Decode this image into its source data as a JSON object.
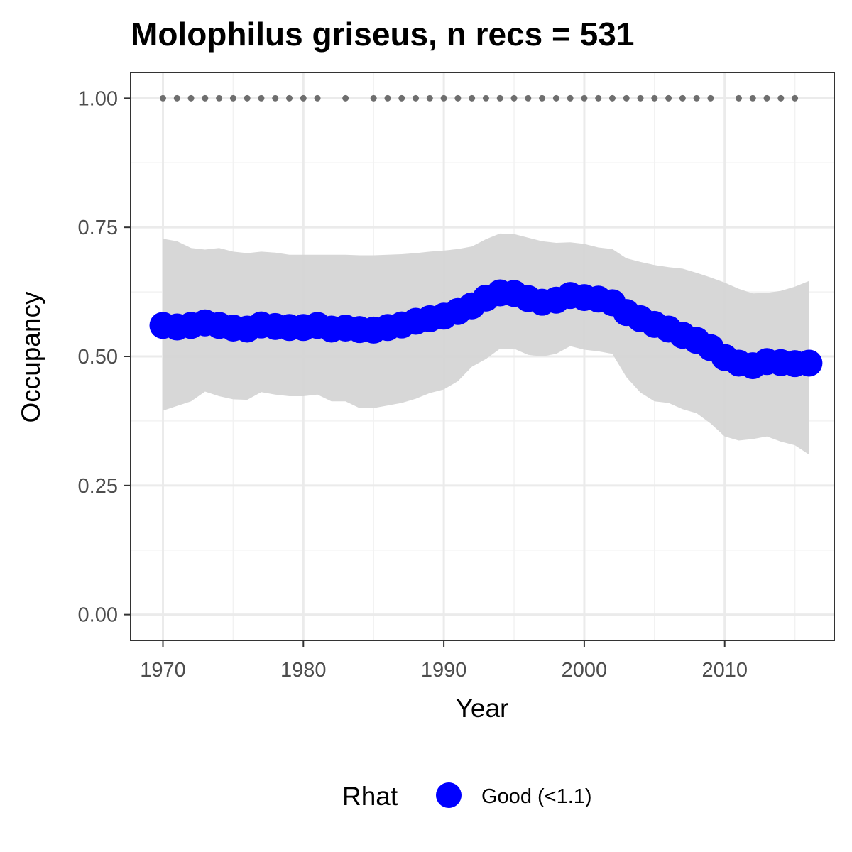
{
  "chart_data": {
    "type": "line",
    "title": "Molophilus griseus, n recs = 531",
    "xlabel": "Year",
    "ylabel": "Occupancy",
    "xlim": [
      1967.7,
      2017.8
    ],
    "ylim": [
      -0.05,
      1.05
    ],
    "x_ticks": [
      1970,
      1980,
      1990,
      2000,
      2010
    ],
    "y_ticks": [
      0,
      0.25,
      0.5,
      0.75,
      1.0
    ],
    "y_tick_labels": [
      "0.00",
      "0.25",
      "0.50",
      "0.75",
      "1.00"
    ],
    "grid": true,
    "legend": {
      "title": "Rhat",
      "position": "bottom",
      "entries": [
        {
          "label": "Good (<1.1)",
          "color": "#0000ff"
        }
      ]
    },
    "series": [
      {
        "kind": "line-points",
        "color": "#0000ff",
        "x": [
          1970,
          1971,
          1972,
          1973,
          1974,
          1975,
          1976,
          1977,
          1978,
          1979,
          1980,
          1981,
          1982,
          1983,
          1984,
          1985,
          1986,
          1987,
          1988,
          1989,
          1990,
          1991,
          1992,
          1993,
          1994,
          1995,
          1996,
          1997,
          1998,
          1999,
          2000,
          2001,
          2002,
          2003,
          2004,
          2005,
          2006,
          2007,
          2008,
          2009,
          2010,
          2011,
          2012,
          2013,
          2014,
          2015,
          2016
        ],
        "y": [
          0.56,
          0.557,
          0.56,
          0.565,
          0.56,
          0.555,
          0.553,
          0.561,
          0.558,
          0.556,
          0.556,
          0.56,
          0.553,
          0.555,
          0.552,
          0.551,
          0.556,
          0.561,
          0.568,
          0.573,
          0.578,
          0.587,
          0.598,
          0.613,
          0.623,
          0.622,
          0.612,
          0.605,
          0.609,
          0.618,
          0.614,
          0.611,
          0.604,
          0.585,
          0.573,
          0.562,
          0.553,
          0.541,
          0.531,
          0.517,
          0.498,
          0.487,
          0.482,
          0.49,
          0.488,
          0.486,
          0.487
        ]
      },
      {
        "kind": "interval",
        "color": "#d5d5d5",
        "x": [
          1970,
          1971,
          1972,
          1973,
          1974,
          1975,
          1976,
          1977,
          1978,
          1979,
          1980,
          1981,
          1982,
          1983,
          1984,
          1985,
          1986,
          1987,
          1988,
          1989,
          1990,
          1991,
          1992,
          1993,
          1994,
          1995,
          1996,
          1997,
          1998,
          1999,
          2000,
          2001,
          2002,
          2003,
          2004,
          2005,
          2006,
          2007,
          2008,
          2009,
          2010,
          2011,
          2012,
          2013,
          2014,
          2015,
          2016
        ],
        "lower": [
          0.395,
          0.404,
          0.413,
          0.432,
          0.423,
          0.417,
          0.416,
          0.431,
          0.426,
          0.423,
          0.423,
          0.426,
          0.413,
          0.413,
          0.4,
          0.4,
          0.405,
          0.41,
          0.418,
          0.429,
          0.436,
          0.452,
          0.48,
          0.495,
          0.515,
          0.515,
          0.503,
          0.5,
          0.505,
          0.52,
          0.513,
          0.51,
          0.505,
          0.46,
          0.43,
          0.413,
          0.41,
          0.398,
          0.39,
          0.37,
          0.345,
          0.337,
          0.34,
          0.345,
          0.335,
          0.328,
          0.31
        ],
        "upper": [
          0.728,
          0.723,
          0.71,
          0.707,
          0.71,
          0.703,
          0.7,
          0.703,
          0.701,
          0.697,
          0.697,
          0.697,
          0.697,
          0.697,
          0.696,
          0.696,
          0.697,
          0.698,
          0.7,
          0.703,
          0.705,
          0.708,
          0.713,
          0.727,
          0.738,
          0.737,
          0.73,
          0.723,
          0.72,
          0.721,
          0.718,
          0.711,
          0.708,
          0.69,
          0.683,
          0.677,
          0.673,
          0.67,
          0.662,
          0.653,
          0.643,
          0.631,
          0.622,
          0.623,
          0.627,
          0.635,
          0.646
        ]
      },
      {
        "kind": "record-points",
        "color": "#6e6e6e",
        "y_value": 1.0,
        "x": [
          1970,
          1971,
          1972,
          1973,
          1974,
          1975,
          1976,
          1977,
          1978,
          1979,
          1980,
          1981,
          1983,
          1985,
          1986,
          1987,
          1988,
          1989,
          1990,
          1991,
          1992,
          1993,
          1994,
          1995,
          1996,
          1997,
          1998,
          1999,
          2000,
          2001,
          2002,
          2003,
          2004,
          2005,
          2006,
          2007,
          2008,
          2009,
          2011,
          2012,
          2013,
          2014,
          2015
        ]
      }
    ]
  }
}
